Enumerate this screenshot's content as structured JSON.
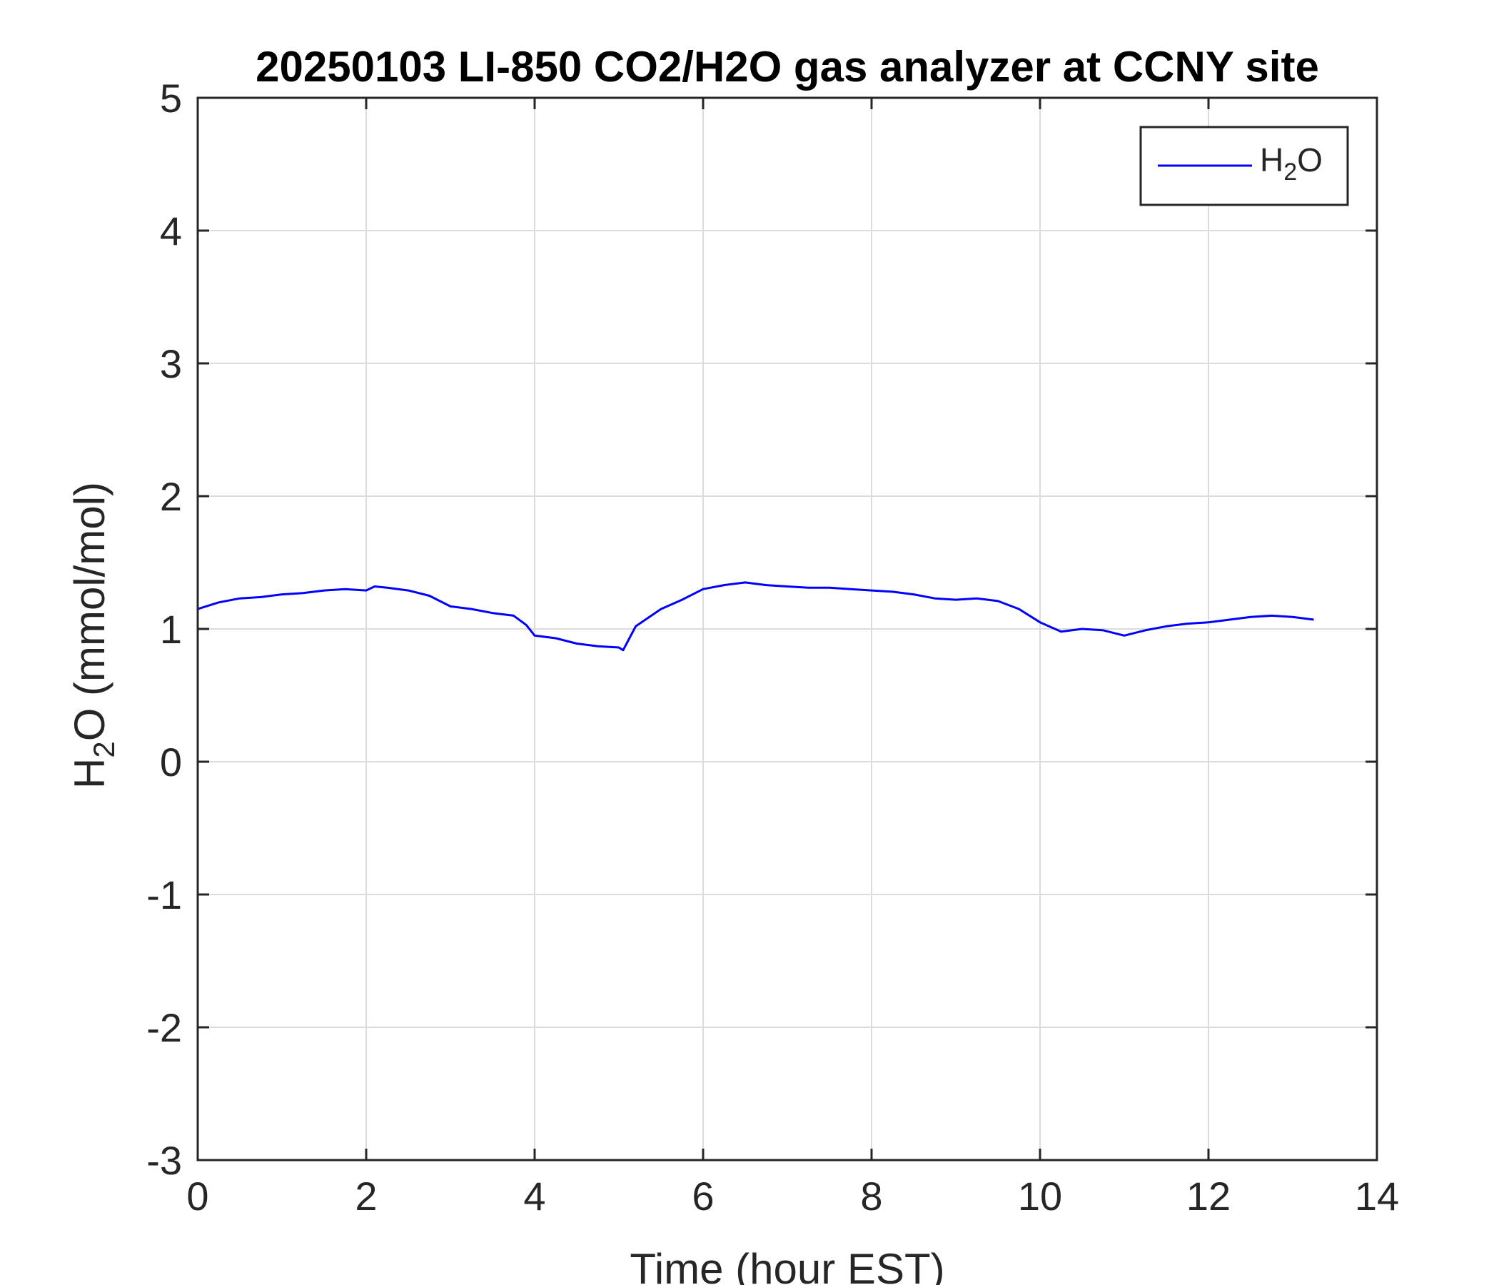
{
  "chart_data": {
    "type": "line",
    "title": "20250103 LI-850 CO2/H2O gas analyzer at CCNY site",
    "xlabel": "Time (hour EST)",
    "ylabel": "H2O (mmol/mol)",
    "xlim": [
      0,
      14
    ],
    "ylim": [
      -3,
      5
    ],
    "xticks": [
      "0",
      "2",
      "4",
      "6",
      "8",
      "10",
      "12",
      "14"
    ],
    "yticks": [
      "-3",
      "-2",
      "-1",
      "0",
      "1",
      "2",
      "3",
      "4",
      "5"
    ],
    "grid": true,
    "legend": {
      "placement": "top-right",
      "entries": [
        "H2O"
      ]
    },
    "series": [
      {
        "name": "H2O",
        "color": "#0000ff",
        "x": [
          0,
          0.25,
          0.5,
          0.75,
          1.0,
          1.25,
          1.5,
          1.75,
          2.0,
          2.1,
          2.25,
          2.5,
          2.75,
          3.0,
          3.25,
          3.5,
          3.75,
          3.9,
          4.0,
          4.25,
          4.5,
          4.75,
          5.0,
          5.05,
          5.2,
          5.5,
          5.75,
          6.0,
          6.25,
          6.5,
          6.75,
          7.0,
          7.25,
          7.5,
          7.75,
          8.0,
          8.25,
          8.5,
          8.75,
          9.0,
          9.25,
          9.5,
          9.75,
          10.0,
          10.25,
          10.5,
          10.75,
          11.0,
          11.25,
          11.5,
          11.75,
          12.0,
          12.25,
          12.5,
          12.75,
          13.0,
          13.25
        ],
        "y": [
          1.15,
          1.2,
          1.23,
          1.24,
          1.26,
          1.27,
          1.29,
          1.3,
          1.29,
          1.32,
          1.31,
          1.29,
          1.25,
          1.17,
          1.15,
          1.12,
          1.1,
          1.03,
          0.95,
          0.93,
          0.89,
          0.87,
          0.86,
          0.84,
          1.02,
          1.15,
          1.22,
          1.3,
          1.33,
          1.35,
          1.33,
          1.32,
          1.31,
          1.31,
          1.3,
          1.29,
          1.28,
          1.26,
          1.23,
          1.22,
          1.23,
          1.21,
          1.15,
          1.05,
          0.98,
          1.0,
          0.99,
          0.95,
          0.99,
          1.02,
          1.04,
          1.05,
          1.07,
          1.09,
          1.1,
          1.09,
          1.07
        ]
      }
    ]
  }
}
